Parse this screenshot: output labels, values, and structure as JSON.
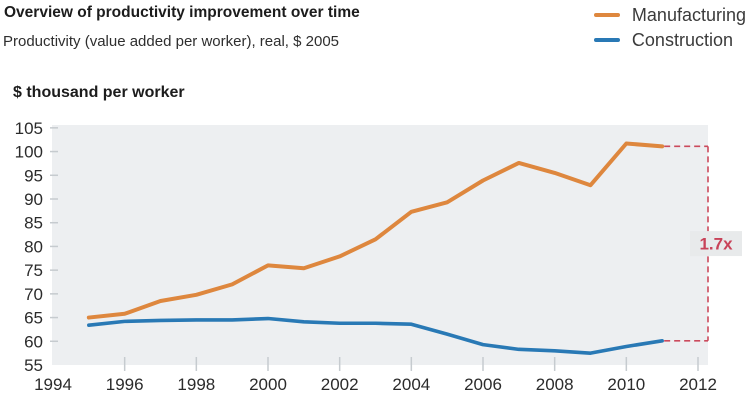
{
  "header": {
    "title": "Overview of productivity improvement over time",
    "subtitle": "Productivity (value added per worker), real, $ 2005"
  },
  "legend": {
    "items": [
      {
        "label": "Manufacturing",
        "color": "#DE873E"
      },
      {
        "label": "Construction",
        "color": "#2979B5"
      }
    ]
  },
  "chart_data": {
    "type": "line",
    "title": "Overview of productivity improvement over time",
    "subtitle": "Productivity (value added per worker), real, $ 2005",
    "ylabel": "$ thousand per worker",
    "x": [
      1995,
      1996,
      1997,
      1998,
      1999,
      2000,
      2001,
      2002,
      2003,
      2004,
      2005,
      2006,
      2007,
      2008,
      2009,
      2010,
      2011
    ],
    "series": [
      {
        "name": "Manufacturing",
        "color": "#DE873E",
        "values": [
          65.0,
          65.8,
          68.5,
          69.8,
          72.0,
          76.0,
          75.4,
          77.9,
          81.5,
          87.3,
          89.3,
          93.9,
          97.6,
          95.5,
          92.9,
          101.7,
          101.1
        ]
      },
      {
        "name": "Construction",
        "color": "#2979B5",
        "values": [
          63.4,
          64.2,
          64.4,
          64.5,
          64.5,
          64.8,
          64.1,
          63.8,
          63.8,
          63.6,
          61.5,
          59.3,
          58.3,
          58.0,
          57.5,
          58.9,
          60.1
        ]
      }
    ],
    "xlim": [
      1994,
      2012.3
    ],
    "ylim": [
      55,
      105.6
    ],
    "x_ticks": [
      1994,
      1996,
      1998,
      2000,
      2002,
      2004,
      2006,
      2008,
      2010,
      2012
    ],
    "y_ticks": [
      55,
      60,
      65,
      70,
      75,
      80,
      85,
      90,
      95,
      100,
      105
    ],
    "grid": false,
    "legend_position": "top-right",
    "plot_bg": "#EDEFF1",
    "tick_color": "#C6CBCF",
    "axis_text_color": "#2b2b2b",
    "annotation": {
      "label": "1.7x",
      "text_color": "#C84258",
      "line_color": "#CB4A5C",
      "bg": "#E8EAEB"
    }
  }
}
